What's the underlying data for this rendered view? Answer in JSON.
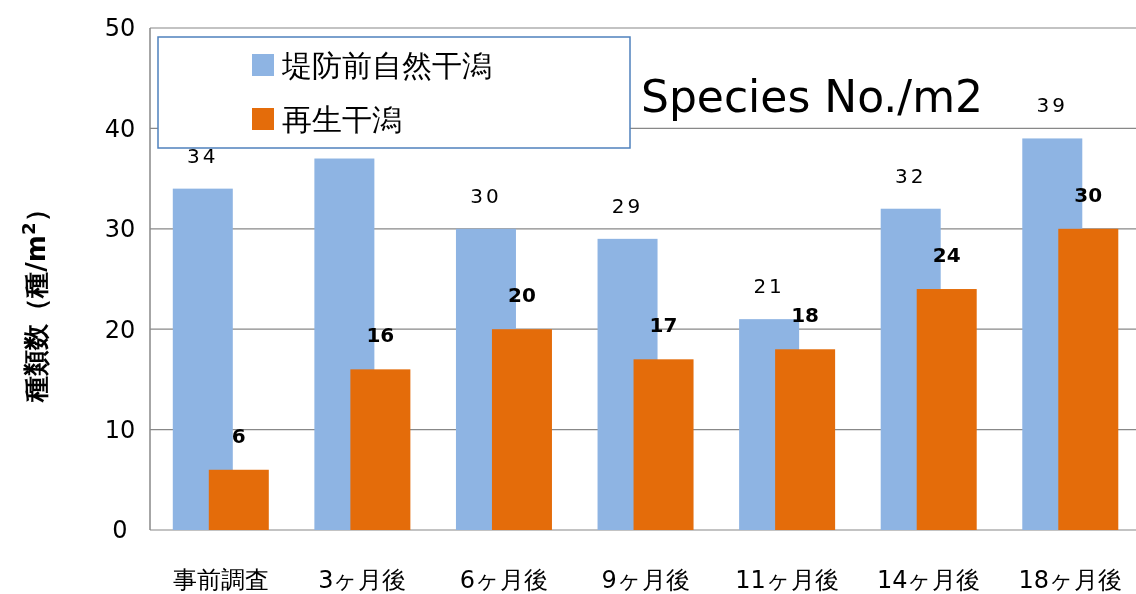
{
  "chart_data": {
    "type": "bar",
    "title": "Species No./m2",
    "ylabel": "種類数（種/m$^{2}$）",
    "categories": [
      "事前調査",
      "3ヶ月後",
      "6ヶ月後",
      "9ヶ月後",
      "11ヶ月後",
      "14ヶ月後",
      "18ヶ月後"
    ],
    "series": [
      {
        "name": "堤防前自然干潟",
        "color": "#8eb4e3",
        "values": [
          34,
          37,
          30,
          29,
          21,
          32,
          39
        ],
        "value_labels": [
          "34",
          null,
          "30",
          "29",
          "21",
          "32",
          "39"
        ]
      },
      {
        "name": "再生干潟",
        "color": "#e46c0a",
        "values": [
          6,
          16,
          20,
          17,
          18,
          24,
          30
        ],
        "value_labels": [
          "6",
          "16",
          "20",
          "17",
          "18",
          "24",
          "30"
        ]
      }
    ],
    "ylim": [
      0,
      50
    ],
    "yticks": [
      0,
      10,
      20,
      30,
      40,
      50
    ],
    "grid": "y",
    "legend": "top left"
  }
}
